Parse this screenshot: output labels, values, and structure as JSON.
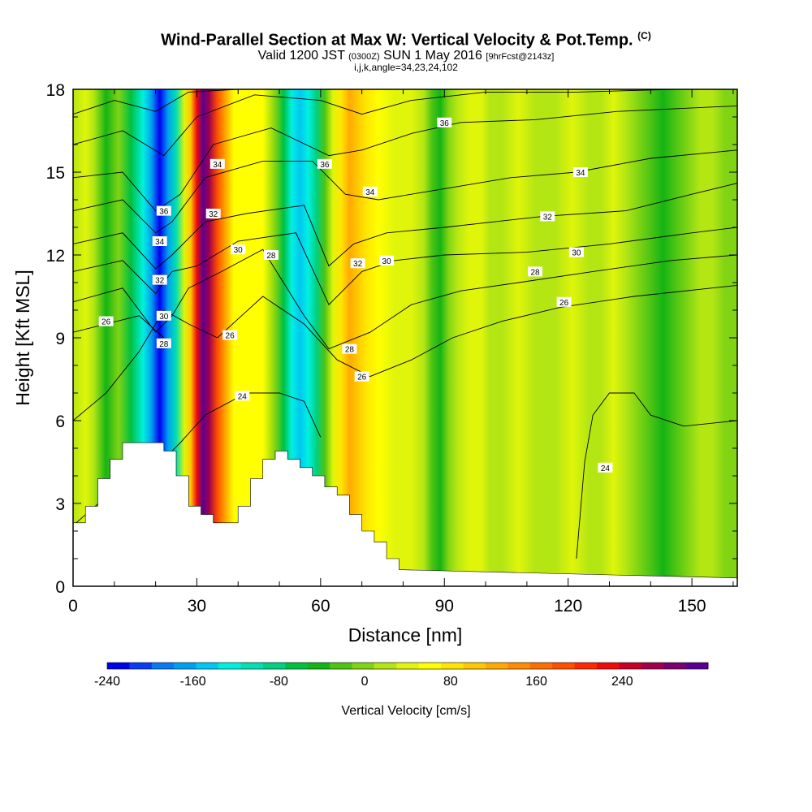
{
  "header": {
    "title": "Wind-Parallel Section at Max W: Vertical Velocity & Pot.Temp.",
    "copyright": "(C)",
    "valid_prefix": "Valid 1200 JST",
    "valid_zulu": "(0300Z)",
    "valid_date": "SUN 1 May 2016",
    "forecast": "[9hrFcst@2143z]",
    "grid_info": "i,j,k,angle=34,23,24,102"
  },
  "chart_data": {
    "type": "heatmap",
    "xlabel": "Distance [nm]",
    "ylabel": "Height [Kft MSL]",
    "xlim": [
      0,
      161
    ],
    "ylim": [
      0,
      18
    ],
    "x_ticks": [
      "0",
      "30",
      "60",
      "90",
      "120",
      "150"
    ],
    "x_tick_values": [
      0,
      30,
      60,
      90,
      120,
      150
    ],
    "y_ticks": [
      "0",
      "3",
      "6",
      "9",
      "12",
      "15",
      "18"
    ],
    "y_tick_values": [
      0,
      3,
      6,
      9,
      12,
      15,
      18
    ],
    "colorbar": {
      "label": "Vertical Velocity [cm/s]",
      "min": -240,
      "max": 300,
      "step": 20,
      "tick_labels": [
        "-240",
        "-160",
        "-80",
        "0",
        "80",
        "160",
        "240"
      ],
      "tick_values": [
        -240,
        -160,
        -80,
        0,
        80,
        160,
        240
      ],
      "colors": [
        "#0000f0",
        "#0a3cf5",
        "#0a78f5",
        "#00a0f0",
        "#00c8f0",
        "#00f0e0",
        "#00e0b0",
        "#00d080",
        "#00c040",
        "#14b414",
        "#4cc414",
        "#80d414",
        "#b4e614",
        "#e0f50a",
        "#ffff00",
        "#ffe600",
        "#ffc800",
        "#ffaa00",
        "#ff8c00",
        "#ff6e00",
        "#ff5000",
        "#ff2800",
        "#f00a0a",
        "#c80028",
        "#a0004c",
        "#7a006e",
        "#5a0090"
      ]
    },
    "vertical_velocity_bands": [
      {
        "x": 0,
        "w": 5
      },
      {
        "x": 3,
        "w": 20
      },
      {
        "x": 5,
        "w": 0
      },
      {
        "x": 8,
        "w": -50
      },
      {
        "x": 11,
        "w": -20
      },
      {
        "x": 14,
        "w": -70
      },
      {
        "x": 17,
        "w": -130
      },
      {
        "x": 19,
        "w": -180
      },
      {
        "x": 21,
        "w": -230
      },
      {
        "x": 23,
        "w": -180
      },
      {
        "x": 25,
        "w": -110
      },
      {
        "x": 27,
        "w": 20
      },
      {
        "x": 28.5,
        "w": 90
      },
      {
        "x": 30,
        "w": 200
      },
      {
        "x": 31.5,
        "w": 290
      },
      {
        "x": 33,
        "w": 240
      },
      {
        "x": 35,
        "w": 160
      },
      {
        "x": 37,
        "w": 100
      },
      {
        "x": 39,
        "w": 50
      },
      {
        "x": 42,
        "w": 40
      },
      {
        "x": 46,
        "w": 40
      },
      {
        "x": 49,
        "w": -10
      },
      {
        "x": 51,
        "w": -70
      },
      {
        "x": 53,
        "w": -130
      },
      {
        "x": 55,
        "w": -160
      },
      {
        "x": 57,
        "w": -140
      },
      {
        "x": 59,
        "w": -90
      },
      {
        "x": 61,
        "w": -40
      },
      {
        "x": 63,
        "w": 20
      },
      {
        "x": 65,
        "w": 60
      },
      {
        "x": 67,
        "w": 110
      },
      {
        "x": 69,
        "w": 90
      },
      {
        "x": 71,
        "w": 60
      },
      {
        "x": 74,
        "w": 40
      },
      {
        "x": 78,
        "w": 30
      },
      {
        "x": 82,
        "w": 20
      },
      {
        "x": 85,
        "w": 0
      },
      {
        "x": 87,
        "w": -30
      },
      {
        "x": 89,
        "w": -60
      },
      {
        "x": 91,
        "w": -20
      },
      {
        "x": 93,
        "w": 10
      },
      {
        "x": 96,
        "w": 30
      },
      {
        "x": 99,
        "w": 20
      },
      {
        "x": 101,
        "w": 0
      },
      {
        "x": 104,
        "w": 10
      },
      {
        "x": 108,
        "w": 20
      },
      {
        "x": 112,
        "w": 0
      },
      {
        "x": 117,
        "w": 10
      },
      {
        "x": 121,
        "w": 20
      },
      {
        "x": 125,
        "w": 10
      },
      {
        "x": 128,
        "w": 0
      },
      {
        "x": 131,
        "w": 30
      },
      {
        "x": 134,
        "w": 10
      },
      {
        "x": 137,
        "w": -20
      },
      {
        "x": 140,
        "w": -40
      },
      {
        "x": 143,
        "w": -50
      },
      {
        "x": 146,
        "w": -40
      },
      {
        "x": 149,
        "w": -10
      },
      {
        "x": 152,
        "w": 10
      },
      {
        "x": 155,
        "w": 0
      },
      {
        "x": 158,
        "w": -20
      },
      {
        "x": 161,
        "w": -10
      }
    ],
    "terrain_profile": [
      {
        "x": 0,
        "z": 2.3
      },
      {
        "x": 3,
        "z": 2.3
      },
      {
        "x": 3,
        "z": 2.9
      },
      {
        "x": 6,
        "z": 2.9
      },
      {
        "x": 6,
        "z": 3.9
      },
      {
        "x": 9,
        "z": 3.9
      },
      {
        "x": 9,
        "z": 4.6
      },
      {
        "x": 12,
        "z": 4.6
      },
      {
        "x": 12,
        "z": 5.2
      },
      {
        "x": 22,
        "z": 5.2
      },
      {
        "x": 22,
        "z": 4.9
      },
      {
        "x": 25,
        "z": 4.9
      },
      {
        "x": 25,
        "z": 4.0
      },
      {
        "x": 28,
        "z": 4.0
      },
      {
        "x": 28,
        "z": 2.9
      },
      {
        "x": 31,
        "z": 2.9
      },
      {
        "x": 31,
        "z": 2.6
      },
      {
        "x": 34,
        "z": 2.6
      },
      {
        "x": 34,
        "z": 2.3
      },
      {
        "x": 40,
        "z": 2.3
      },
      {
        "x": 40,
        "z": 2.9
      },
      {
        "x": 43,
        "z": 2.9
      },
      {
        "x": 43,
        "z": 3.9
      },
      {
        "x": 46,
        "z": 3.9
      },
      {
        "x": 46,
        "z": 4.6
      },
      {
        "x": 49,
        "z": 4.6
      },
      {
        "x": 49,
        "z": 4.9
      },
      {
        "x": 52,
        "z": 4.9
      },
      {
        "x": 52,
        "z": 4.6
      },
      {
        "x": 55,
        "z": 4.6
      },
      {
        "x": 55,
        "z": 4.3
      },
      {
        "x": 58,
        "z": 4.3
      },
      {
        "x": 58,
        "z": 4.0
      },
      {
        "x": 61,
        "z": 4.0
      },
      {
        "x": 61,
        "z": 3.6
      },
      {
        "x": 64,
        "z": 3.6
      },
      {
        "x": 64,
        "z": 3.3
      },
      {
        "x": 67,
        "z": 3.3
      },
      {
        "x": 67,
        "z": 2.6
      },
      {
        "x": 70,
        "z": 2.6
      },
      {
        "x": 70,
        "z": 2.0
      },
      {
        "x": 73,
        "z": 2.0
      },
      {
        "x": 73,
        "z": 1.6
      },
      {
        "x": 76,
        "z": 1.6
      },
      {
        "x": 76,
        "z": 1.0
      },
      {
        "x": 79,
        "z": 1.0
      },
      {
        "x": 79,
        "z": 0.6
      },
      {
        "x": 161,
        "z": 0.3
      }
    ],
    "theta_contours": [
      {
        "label": "24",
        "points": [
          [
            0,
            2.2
          ],
          [
            10,
            3.5
          ],
          [
            20,
            4.3
          ],
          [
            26,
            5.2
          ],
          [
            32,
            6.2
          ],
          [
            42,
            7.0
          ],
          [
            50,
            7.0
          ],
          [
            56,
            6.7
          ],
          [
            60,
            5.4
          ]
        ]
      },
      {
        "label": "24",
        "points": [
          [
            122,
            1.0
          ],
          [
            124,
            4.5
          ],
          [
            126,
            6.2
          ],
          [
            130,
            7.0
          ],
          [
            136,
            7.0
          ],
          [
            140,
            6.2
          ],
          [
            148,
            5.8
          ],
          [
            161,
            6.0
          ]
        ]
      },
      {
        "label": "26",
        "points": [
          [
            0,
            6.0
          ],
          [
            8,
            7.0
          ],
          [
            16,
            8.5
          ],
          [
            22,
            10.0
          ],
          [
            28,
            9.5
          ],
          [
            35,
            9.0
          ],
          [
            46,
            10.5
          ],
          [
            56,
            9.5
          ],
          [
            64,
            8.2
          ],
          [
            72,
            7.6
          ],
          [
            82,
            8.2
          ],
          [
            92,
            9.0
          ],
          [
            104,
            9.6
          ],
          [
            118,
            10.1
          ],
          [
            136,
            10.5
          ],
          [
            161,
            10.9
          ]
        ]
      },
      {
        "label": "26",
        "points": [
          [
            0,
            9.2
          ],
          [
            8,
            9.5
          ],
          [
            16,
            9.8
          ],
          [
            22,
            9.0
          ]
        ]
      },
      {
        "label": "28",
        "points": [
          [
            0,
            10.3
          ],
          [
            12,
            10.8
          ],
          [
            20,
            9.2
          ],
          [
            24,
            9.8
          ],
          [
            28,
            10.8
          ],
          [
            36,
            11.4
          ],
          [
            46,
            12.2
          ],
          [
            56,
            9.8
          ],
          [
            62,
            8.6
          ],
          [
            72,
            9.2
          ],
          [
            82,
            10.2
          ],
          [
            94,
            10.7
          ],
          [
            108,
            11.0
          ],
          [
            126,
            11.4
          ],
          [
            145,
            11.8
          ],
          [
            161,
            12.0
          ]
        ]
      },
      {
        "label": "30",
        "points": [
          [
            0,
            11.4
          ],
          [
            12,
            11.8
          ],
          [
            20,
            10.6
          ],
          [
            24,
            11.4
          ],
          [
            30,
            11.6
          ],
          [
            40,
            12.5
          ],
          [
            54,
            12.8
          ],
          [
            62,
            10.2
          ],
          [
            70,
            11.4
          ],
          [
            78,
            11.8
          ],
          [
            90,
            12.0
          ],
          [
            110,
            12.1
          ],
          [
            130,
            12.4
          ],
          [
            150,
            12.8
          ],
          [
            161,
            13.0
          ]
        ]
      },
      {
        "label": "32",
        "points": [
          [
            0,
            12.4
          ],
          [
            12,
            12.8
          ],
          [
            20,
            11.5
          ],
          [
            24,
            12.0
          ],
          [
            32,
            13.2
          ],
          [
            42,
            13.5
          ],
          [
            56,
            13.8
          ],
          [
            62,
            11.6
          ],
          [
            68,
            12.4
          ],
          [
            76,
            12.8
          ],
          [
            90,
            13.0
          ],
          [
            114,
            13.4
          ],
          [
            134,
            13.6
          ],
          [
            150,
            14.2
          ],
          [
            161,
            14.6
          ]
        ]
      },
      {
        "label": "34",
        "points": [
          [
            0,
            13.6
          ],
          [
            12,
            14.0
          ],
          [
            20,
            12.8
          ],
          [
            24,
            13.2
          ],
          [
            32,
            14.8
          ],
          [
            46,
            15.4
          ],
          [
            58,
            15.4
          ],
          [
            66,
            14.2
          ],
          [
            74,
            14.0
          ],
          [
            90,
            14.4
          ],
          [
            106,
            14.8
          ],
          [
            122,
            15.0
          ],
          [
            140,
            15.5
          ],
          [
            161,
            15.8
          ]
        ]
      },
      {
        "label": "36",
        "points": [
          [
            0,
            14.8
          ],
          [
            12,
            15.0
          ],
          [
            20,
            13.6
          ],
          [
            26,
            14.2
          ],
          [
            34,
            16.0
          ],
          [
            48,
            16.6
          ],
          [
            62,
            15.6
          ],
          [
            70,
            15.8
          ],
          [
            82,
            16.4
          ],
          [
            94,
            16.8
          ],
          [
            112,
            16.9
          ],
          [
            132,
            17.2
          ],
          [
            161,
            17.4
          ]
        ]
      },
      {
        "label": "",
        "points": [
          [
            0,
            16.0
          ],
          [
            12,
            16.5
          ],
          [
            22,
            15.6
          ],
          [
            30,
            17.0
          ],
          [
            44,
            17.8
          ],
          [
            60,
            17.6
          ],
          [
            70,
            17.1
          ],
          [
            82,
            17.6
          ],
          [
            100,
            17.9
          ],
          [
            122,
            17.9
          ],
          [
            146,
            18.0
          ]
        ]
      },
      {
        "label": "",
        "points": [
          [
            0,
            17.1
          ],
          [
            10,
            17.6
          ],
          [
            20,
            17.2
          ],
          [
            28,
            17.9
          ],
          [
            40,
            18.0
          ]
        ]
      }
    ],
    "contour_labels": [
      {
        "text": "36",
        "x": 90,
        "y": 16.8
      },
      {
        "text": "34",
        "x": 35,
        "y": 15.3
      },
      {
        "text": "36",
        "x": 61,
        "y": 15.3
      },
      {
        "text": "34",
        "x": 123,
        "y": 15.0
      },
      {
        "text": "34",
        "x": 72,
        "y": 14.3
      },
      {
        "text": "36",
        "x": 22,
        "y": 13.6
      },
      {
        "text": "32",
        "x": 34,
        "y": 13.5
      },
      {
        "text": "32",
        "x": 115,
        "y": 13.4
      },
      {
        "text": "34",
        "x": 21,
        "y": 12.5
      },
      {
        "text": "30",
        "x": 40,
        "y": 12.2
      },
      {
        "text": "28",
        "x": 48,
        "y": 12.0
      },
      {
        "text": "30",
        "x": 122,
        "y": 12.1
      },
      {
        "text": "32",
        "x": 69,
        "y": 11.7
      },
      {
        "text": "30",
        "x": 76,
        "y": 11.8
      },
      {
        "text": "32",
        "x": 21,
        "y": 11.1
      },
      {
        "text": "28",
        "x": 112,
        "y": 11.4
      },
      {
        "text": "26",
        "x": 8,
        "y": 9.6
      },
      {
        "text": "30",
        "x": 22,
        "y": 9.8
      },
      {
        "text": "26",
        "x": 119,
        "y": 10.3
      },
      {
        "text": "28",
        "x": 22,
        "y": 8.8
      },
      {
        "text": "26",
        "x": 38,
        "y": 9.1
      },
      {
        "text": "28",
        "x": 67,
        "y": 8.6
      },
      {
        "text": "26",
        "x": 70,
        "y": 7.6
      },
      {
        "text": "24",
        "x": 41,
        "y": 6.9
      },
      {
        "text": "24",
        "x": 129,
        "y": 4.3
      }
    ]
  }
}
